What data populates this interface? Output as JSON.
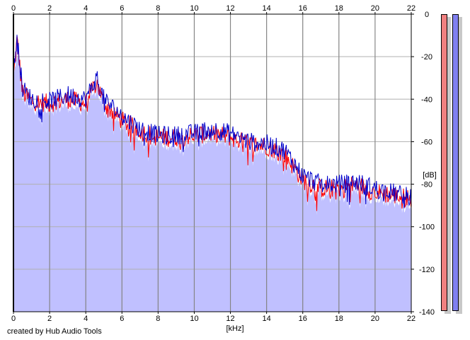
{
  "chart_data": {
    "type": "area",
    "xlabel": "[kHz]",
    "ylabel": "[dB]",
    "xlim": [
      0,
      22
    ],
    "ylim": [
      -140,
      0
    ],
    "x_ticks": [
      0,
      2,
      4,
      6,
      8,
      10,
      12,
      14,
      16,
      18,
      20,
      22
    ],
    "y_ticks": [
      0,
      -20,
      -40,
      -60,
      -80,
      -100,
      -120,
      -140
    ],
    "grid": true,
    "series": [
      {
        "color": "#ff0000",
        "x": [
          0,
          0.2,
          0.5,
          1,
          2,
          3,
          4,
          4.6,
          5,
          6,
          7,
          8,
          9,
          10,
          11,
          12,
          13,
          14,
          15,
          16,
          17,
          18,
          19,
          20,
          21,
          22
        ],
        "values": [
          -30,
          -12,
          -37,
          -41,
          -42,
          -40,
          -42,
          -32,
          -42,
          -50,
          -55,
          -58,
          -58,
          -57,
          -56,
          -58,
          -61,
          -62,
          -66,
          -78,
          -82,
          -82,
          -80,
          -84,
          -85,
          -87
        ]
      },
      {
        "color": "#0000cc",
        "x": [
          0,
          0.2,
          0.5,
          1,
          2,
          3,
          4,
          4.6,
          5,
          6,
          7,
          8,
          9,
          10,
          11,
          12,
          13,
          14,
          15,
          16,
          17,
          18,
          19,
          20,
          21,
          22
        ],
        "values": [
          -28,
          -10,
          -35,
          -40,
          -41,
          -38,
          -40,
          -30,
          -40,
          -48,
          -54,
          -57,
          -57,
          -56,
          -54,
          -56,
          -60,
          -61,
          -64,
          -76,
          -80,
          -80,
          -79,
          -82,
          -84,
          -86
        ]
      }
    ],
    "fill_color": "#c0c0ff"
  },
  "meters": [
    {
      "color": "#f08080",
      "level": 1.0
    },
    {
      "color": "#8080f0",
      "level": 1.0
    }
  ],
  "footer": {
    "credit": "created by Hub Audio Tools"
  }
}
